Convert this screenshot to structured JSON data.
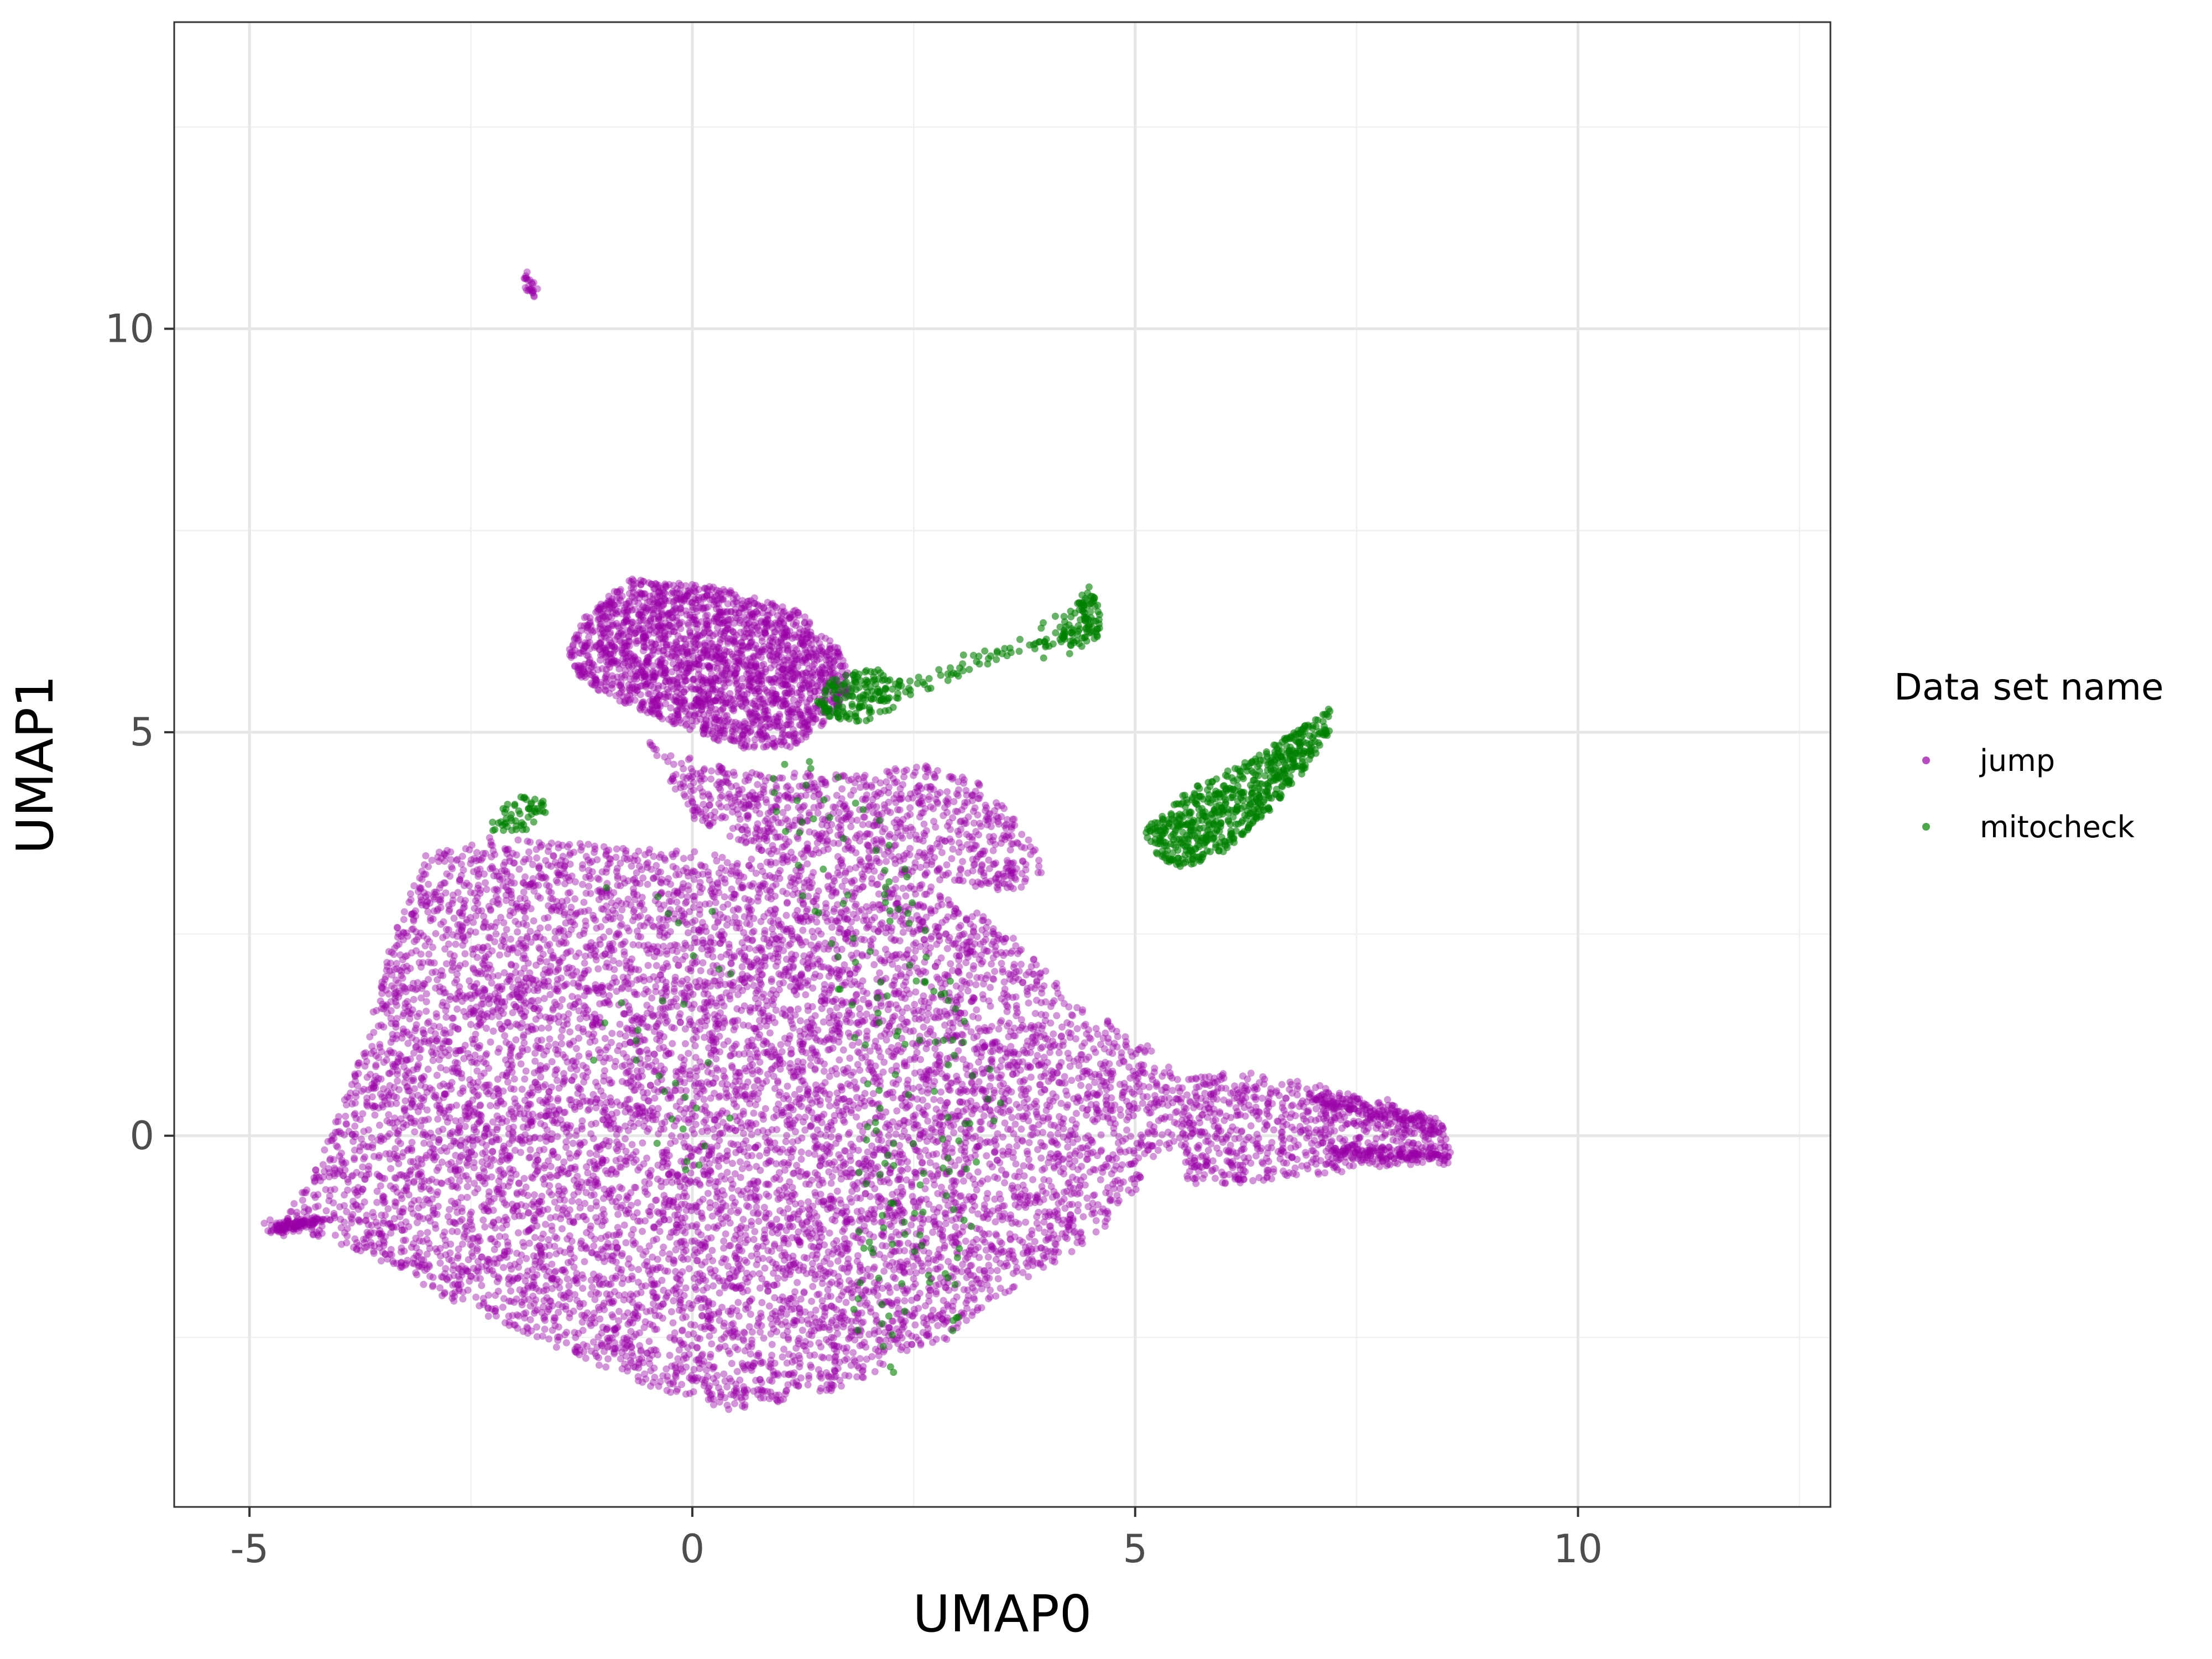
{
  "chart_data": {
    "type": "scatter",
    "xlabel": "UMAP0",
    "ylabel": "UMAP1",
    "xlim": [
      -5.85,
      12.85
    ],
    "ylim": [
      -4.6,
      13.8
    ],
    "x_ticks": [
      -5,
      0,
      5,
      10
    ],
    "x_tick_labels": [
      "-5",
      "0",
      "5",
      "10"
    ],
    "y_ticks": [
      0,
      5,
      10
    ],
    "y_tick_labels": [
      "0",
      "5",
      "10"
    ],
    "grid": true,
    "legend": {
      "title": "Data set name",
      "placement": "right",
      "entries": [
        "jump",
        "mitocheck"
      ]
    },
    "series": [
      {
        "name": "jump",
        "color": "#9900A6",
        "regions": [
          {
            "shape": "polygon",
            "n": 9000,
            "poly": [
              [
                -4.7,
                -1.2
              ],
              [
                -4.2,
                -0.3
              ],
              [
                -3.8,
                0.8
              ],
              [
                -3.4,
                2.4
              ],
              [
                -3.0,
                3.5
              ],
              [
                -2.3,
                3.7
              ],
              [
                -1.0,
                3.6
              ],
              [
                0.5,
                3.5
              ],
              [
                1.5,
                3.3
              ],
              [
                2.5,
                3.2
              ],
              [
                3.5,
                2.6
              ],
              [
                4.2,
                1.8
              ],
              [
                5.3,
                1.0
              ],
              [
                5.6,
                0.5
              ],
              [
                5.4,
                -0.2
              ],
              [
                4.6,
                -1.2
              ],
              [
                4.1,
                -1.6
              ],
              [
                3.3,
                -2.1
              ],
              [
                2.8,
                -2.6
              ],
              [
                1.5,
                -3.2
              ],
              [
                0.4,
                -3.4
              ],
              [
                -0.5,
                -3.1
              ],
              [
                -1.6,
                -2.6
              ],
              [
                -2.8,
                -2.0
              ],
              [
                -3.6,
                -1.5
              ],
              [
                -4.4,
                -1.2
              ]
            ]
          },
          {
            "shape": "polygon",
            "n": 2200,
            "poly": [
              [
                -1.4,
                6.0
              ],
              [
                -1.2,
                6.5
              ],
              [
                -0.7,
                6.9
              ],
              [
                0.3,
                6.8
              ],
              [
                1.2,
                6.5
              ],
              [
                1.7,
                6.0
              ],
              [
                1.8,
                5.5
              ],
              [
                1.5,
                5.1
              ],
              [
                1.1,
                4.8
              ],
              [
                0.5,
                4.8
              ],
              [
                -0.2,
                5.1
              ],
              [
                -0.9,
                5.4
              ],
              [
                -1.3,
                5.7
              ]
            ]
          },
          {
            "shape": "polygon",
            "n": 900,
            "poly": [
              [
                -0.5,
                4.9
              ],
              [
                0.5,
                4.5
              ],
              [
                1.8,
                4.5
              ],
              [
                2.6,
                4.6
              ],
              [
                3.2,
                4.4
              ],
              [
                3.8,
                3.8
              ],
              [
                4.0,
                3.2
              ],
              [
                3.6,
                3.0
              ],
              [
                2.5,
                3.2
              ],
              [
                1.0,
                3.4
              ],
              [
                0.0,
                3.9
              ]
            ]
          },
          {
            "shape": "polygon",
            "n": 700,
            "poly": [
              [
                5.5,
                0.7
              ],
              [
                6.2,
                0.8
              ],
              [
                7.2,
                0.6
              ],
              [
                8.0,
                0.35
              ],
              [
                8.5,
                0.15
              ],
              [
                8.55,
                -0.25
              ],
              [
                8.0,
                -0.35
              ],
              [
                7.4,
                -0.45
              ],
              [
                6.3,
                -0.6
              ],
              [
                5.6,
                -0.6
              ],
              [
                5.5,
                -0.1
              ]
            ]
          },
          {
            "shape": "line",
            "n": 160,
            "from": [
              7.0,
              0.45
            ],
            "to": [
              8.4,
              0.1
            ],
            "spread": 0.06
          },
          {
            "shape": "line",
            "n": 160,
            "from": [
              7.2,
              -0.2
            ],
            "to": [
              8.55,
              -0.25
            ],
            "spread": 0.05
          },
          {
            "shape": "line",
            "n": 120,
            "from": [
              -4.75,
              -1.15
            ],
            "to": [
              -4.2,
              -1.05
            ],
            "spread": 0.04
          },
          {
            "shape": "line",
            "n": 25,
            "from": [
              -1.9,
              10.7
            ],
            "to": [
              -1.8,
              10.45
            ],
            "spread": 0.03
          }
        ]
      },
      {
        "name": "mitocheck",
        "color": "#008000",
        "regions": [
          {
            "shape": "polygon",
            "n": 650,
            "poly": [
              [
                5.1,
                3.8
              ],
              [
                5.6,
                4.3
              ],
              [
                6.2,
                4.6
              ],
              [
                6.8,
                5.0
              ],
              [
                7.2,
                5.3
              ],
              [
                7.2,
                5.0
              ],
              [
                6.9,
                4.5
              ],
              [
                6.5,
                4.0
              ],
              [
                6.0,
                3.5
              ],
              [
                5.5,
                3.3
              ],
              [
                5.2,
                3.5
              ]
            ]
          },
          {
            "shape": "polygon",
            "n": 160,
            "poly": [
              [
                1.4,
                5.4
              ],
              [
                1.6,
                5.7
              ],
              [
                2.1,
                5.8
              ],
              [
                2.4,
                5.6
              ],
              [
                2.3,
                5.3
              ],
              [
                1.9,
                5.1
              ],
              [
                1.5,
                5.2
              ]
            ]
          },
          {
            "shape": "polygon",
            "n": 90,
            "poly": [
              [
                4.15,
                6.1
              ],
              [
                4.3,
                6.5
              ],
              [
                4.45,
                6.85
              ],
              [
                4.6,
                6.6
              ],
              [
                4.6,
                6.2
              ],
              [
                4.4,
                6.05
              ]
            ]
          },
          {
            "shape": "polygon",
            "n": 55,
            "poly": [
              [
                -2.3,
                3.9
              ],
              [
                -2.1,
                4.2
              ],
              [
                -1.7,
                4.2
              ],
              [
                -1.6,
                3.95
              ],
              [
                -1.95,
                3.75
              ],
              [
                -2.25,
                3.7
              ]
            ]
          },
          {
            "shape": "line",
            "n": 45,
            "from": [
              2.4,
              5.5
            ],
            "to": [
              3.7,
              6.1
            ],
            "spread": 0.06
          },
          {
            "shape": "line",
            "n": 35,
            "from": [
              3.8,
              6.1
            ],
            "to": [
              4.3,
              6.3
            ],
            "spread": 0.1
          },
          {
            "shape": "polygon",
            "n": 160,
            "poly": [
              [
                0.6,
                4.6
              ],
              [
                1.8,
                4.8
              ],
              [
                2.5,
                3.2
              ],
              [
                3.5,
                0.5
              ],
              [
                3.0,
                -2.4
              ],
              [
                2.2,
                -3.0
              ],
              [
                1.5,
                -2.5
              ],
              [
                2.0,
                0.5
              ],
              [
                1.3,
                2.8
              ],
              [
                0.9,
                4.0
              ]
            ]
          },
          {
            "shape": "polygon",
            "n": 30,
            "poly": [
              [
                -1.0,
                3.2
              ],
              [
                0.8,
                3.0
              ],
              [
                0.5,
                -0.5
              ],
              [
                -1.2,
                -0.3
              ]
            ]
          }
        ]
      }
    ]
  }
}
